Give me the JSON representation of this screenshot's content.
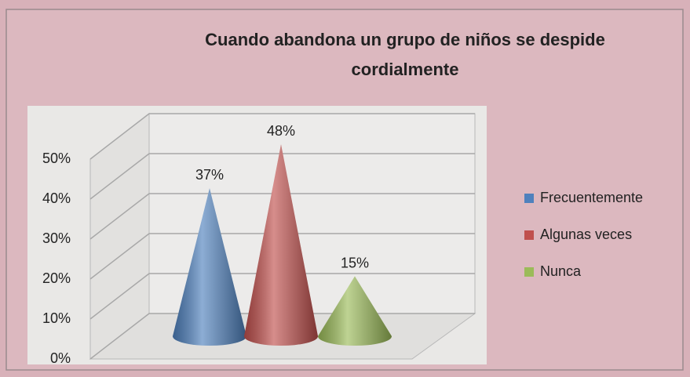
{
  "chart_data": {
    "type": "cone",
    "title": "Cuando abandona un grupo de niños se despide cordialmente",
    "series": [
      {
        "name": "Frecuentemente",
        "color": "#4f81bd",
        "values": [
          37
        ],
        "value_labels": [
          "37%"
        ]
      },
      {
        "name": "Algunas veces",
        "color": "#c0504d",
        "values": [
          48
        ],
        "value_labels": [
          "48%"
        ]
      },
      {
        "name": "Nunca",
        "color": "#9bbb59",
        "values": [
          15
        ],
        "value_labels": [
          "15%"
        ]
      }
    ],
    "ylim": [
      0,
      50
    ],
    "yticks": [
      {
        "value": 0,
        "label": "0%"
      },
      {
        "value": 10,
        "label": "10%"
      },
      {
        "value": 20,
        "label": "20%"
      },
      {
        "value": 30,
        "label": "30%"
      },
      {
        "value": 40,
        "label": "40%"
      },
      {
        "value": 50,
        "label": "50%"
      }
    ],
    "grid": true,
    "legend": "right"
  }
}
